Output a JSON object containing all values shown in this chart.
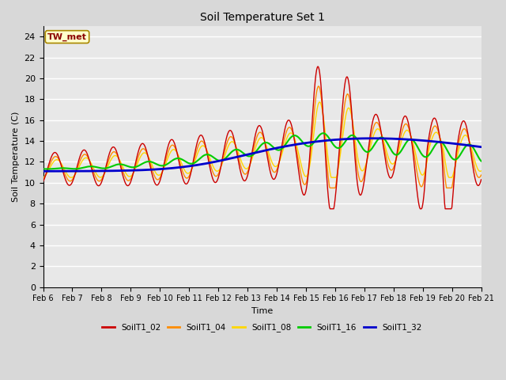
{
  "title": "Soil Temperature Set 1",
  "xlabel": "Time",
  "ylabel": "Soil Temperature (C)",
  "ylim": [
    0,
    25
  ],
  "yticks": [
    0,
    2,
    4,
    6,
    8,
    10,
    12,
    14,
    16,
    18,
    20,
    22,
    24
  ],
  "annotation": "TW_met",
  "annotation_color": "#8B0000",
  "annotation_bg": "#FFFFCC",
  "bg_color": "#E8E8E8",
  "series": {
    "SoilT1_02": {
      "color": "#CC0000",
      "lw": 1.0
    },
    "SoilT1_04": {
      "color": "#FF8C00",
      "lw": 1.0
    },
    "SoilT1_08": {
      "color": "#FFD700",
      "lw": 1.0
    },
    "SoilT1_16": {
      "color": "#00CC00",
      "lw": 1.5
    },
    "SoilT1_32": {
      "color": "#0000CC",
      "lw": 2.0
    }
  },
  "xtick_labels": [
    "Feb 6",
    "Feb 7",
    "Feb 8",
    "Feb 9",
    "Feb 10",
    "Feb 11",
    "Feb 12",
    "Feb 13",
    "Feb 14",
    "Feb 15",
    "Feb 16",
    "Feb 17",
    "Feb 18",
    "Feb 19",
    "Feb 20",
    "Feb 21"
  ],
  "grid_color": "#FFFFFF",
  "legend_colors": [
    "#CC0000",
    "#FF8C00",
    "#FFD700",
    "#00CC00",
    "#0000CC"
  ],
  "legend_labels": [
    "SoilT1_02",
    "SoilT1_04",
    "SoilT1_08",
    "SoilT1_16",
    "SoilT1_32"
  ]
}
